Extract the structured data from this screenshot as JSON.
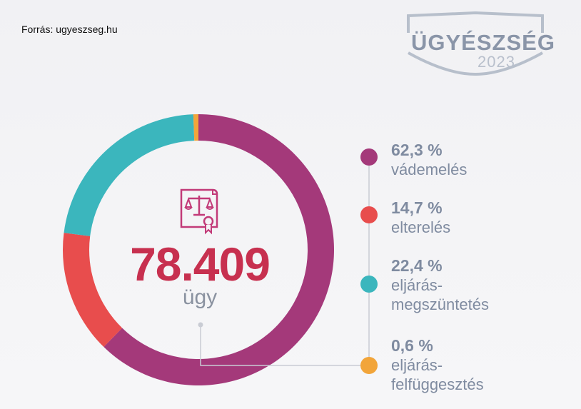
{
  "source": "Forrás: ugyeszseg.hu",
  "logo": {
    "title": "ÜGYÉSZSÉG",
    "year": "2023"
  },
  "chart_data": {
    "type": "pie",
    "title": "",
    "total_value": "78.409",
    "total_unit": "ügy",
    "categories": [
      "vádemelés",
      "elterelés",
      "eljárás-megszüntetés",
      "eljárás-felfüggesztés"
    ],
    "values": [
      62.3,
      14.7,
      22.4,
      0.6
    ],
    "percent_labels": [
      "62,3 %",
      "14,7 %",
      "22,4 %",
      "0,6 %"
    ],
    "label_lines": [
      [
        "vádemelés"
      ],
      [
        "elterelés"
      ],
      [
        "eljárás-",
        "megszüntetés"
      ],
      [
        "eljárás-",
        "felfüggesztés"
      ]
    ],
    "colors": [
      "#a4397a",
      "#e84d4d",
      "#3bb6bd",
      "#f2a53a"
    ],
    "legend_position": "right"
  }
}
